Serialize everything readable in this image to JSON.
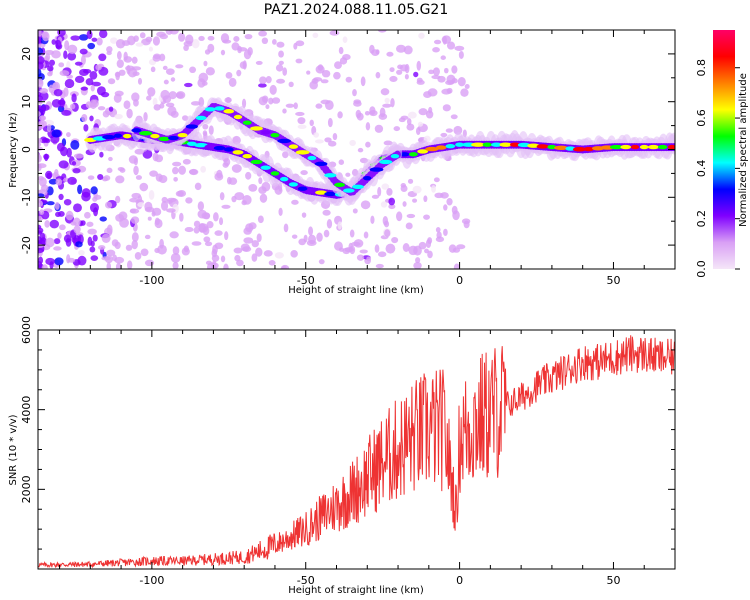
{
  "title": "PAZ1.2024.088.11.05.G21",
  "chart_data": [
    {
      "type": "heatmap",
      "xlabel": "Height of straight line (km)",
      "ylabel": "Frequency (Hz)",
      "xlim": [
        -137,
        70
      ],
      "ylim": [
        -25,
        25
      ],
      "x_ticks": [
        -100,
        -50,
        0,
        50
      ],
      "y_ticks": [
        -20,
        -10,
        0,
        10,
        20
      ],
      "colorbar": {
        "label": "Normalized spectral amplitude",
        "range": [
          0.0,
          0.95
        ],
        "ticks": [
          "0.0",
          "0.2",
          "0.4",
          "0.6",
          "0.8"
        ],
        "colormap": [
          "#f5e6f8",
          "#d9a0f5",
          "#8000ff",
          "#0000ff",
          "#00ffff",
          "#00ff00",
          "#ffff00",
          "#ff8000",
          "#ff0000",
          "#ff0066"
        ]
      },
      "ridges": [
        {
          "x": [
            -120,
            -110,
            -100,
            -95,
            -90,
            -85,
            -80,
            -75,
            -70,
            -65,
            -60,
            -55,
            -50,
            -45,
            -40,
            -35,
            -30,
            -25,
            -22,
            -20,
            -15,
            -10,
            -5,
            0,
            10,
            20,
            30,
            40,
            50,
            60,
            70
          ],
          "y": [
            2,
            3,
            2,
            2,
            1.5,
            1,
            0.5,
            0,
            -1,
            -3,
            -5,
            -7,
            -8.5,
            -9,
            -9.5,
            -9,
            -5,
            -2,
            -1.5,
            -1,
            -1,
            0,
            0.5,
            1,
            1,
            1,
            0.5,
            0,
            0.5,
            0.5,
            0.5
          ]
        },
        {
          "x": [
            -105,
            -100,
            -95,
            -90,
            -85,
            -80,
            -75,
            -70,
            -65,
            -60,
            -55,
            -50,
            -45,
            -40,
            -35,
            -30,
            -25,
            -20
          ],
          "y": [
            4,
            3,
            2,
            3,
            6,
            9,
            8,
            6,
            4,
            3,
            1,
            -1,
            -3,
            -7,
            -9,
            -6,
            -3,
            -1
          ]
        }
      ]
    },
    {
      "type": "line",
      "xlabel": "Height of straight line (km)",
      "ylabel": "SNR (10 * v/v)",
      "xlim": [
        -137,
        70
      ],
      "ylim": [
        0,
        6000
      ],
      "x_ticks": [
        -100,
        -50,
        0,
        50
      ],
      "y_ticks": [
        2000,
        4000,
        6000
      ],
      "series": [
        {
          "color": "#ee3333",
          "x": [
            -137,
            -120,
            -100,
            -90,
            -80,
            -70,
            -65,
            -60,
            -55,
            -50,
            -45,
            -40,
            -35,
            -30,
            -25,
            -20,
            -15,
            -10,
            -5,
            -1,
            0,
            5,
            10,
            15,
            20,
            25,
            30,
            35,
            40,
            45,
            50,
            55,
            60,
            65,
            70
          ],
          "y": [
            100,
            120,
            200,
            200,
            250,
            300,
            450,
            600,
            800,
            1000,
            1300,
            1600,
            1900,
            2300,
            2700,
            3000,
            3300,
            3500,
            3500,
            1400,
            3300,
            3700,
            3900,
            4100,
            4300,
            4600,
            4800,
            5000,
            5200,
            5200,
            5300,
            5400,
            5400,
            5300,
            5300
          ]
        }
      ]
    }
  ]
}
